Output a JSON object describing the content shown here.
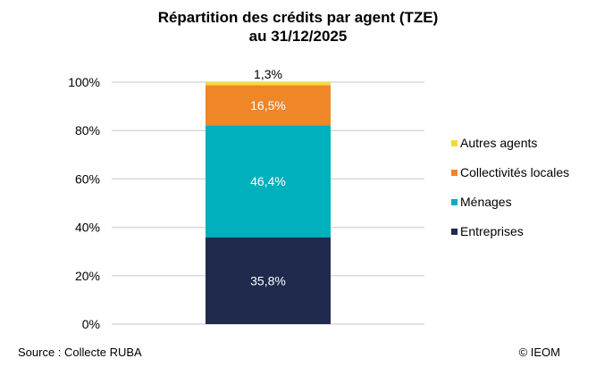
{
  "chart_data": {
    "type": "bar",
    "stacked": true,
    "title": "Répartition des crédits par agent (TZE)",
    "subtitle": "au 31/12/2025",
    "categories": [
      ""
    ],
    "series": [
      {
        "name": "Entreprises",
        "values": [
          35.8
        ],
        "label": "35,8%",
        "color": "#1f2a4d"
      },
      {
        "name": "Ménages",
        "values": [
          46.4
        ],
        "label": "46,4%",
        "color": "#00b0bd"
      },
      {
        "name": "Collectivités locales",
        "values": [
          16.5
        ],
        "label": "16,5%",
        "color": "#ef8628"
      },
      {
        "name": "Autres agents",
        "values": [
          1.3
        ],
        "label": "1,3%",
        "color": "#f5d93c"
      }
    ],
    "yticks": [
      "0%",
      "20%",
      "40%",
      "60%",
      "80%",
      "100%"
    ],
    "ylim": [
      0,
      100
    ],
    "grid": true,
    "legend": "right"
  },
  "footer": {
    "source": "Source : Collecte RUBA",
    "copyright": "© IEOM"
  }
}
